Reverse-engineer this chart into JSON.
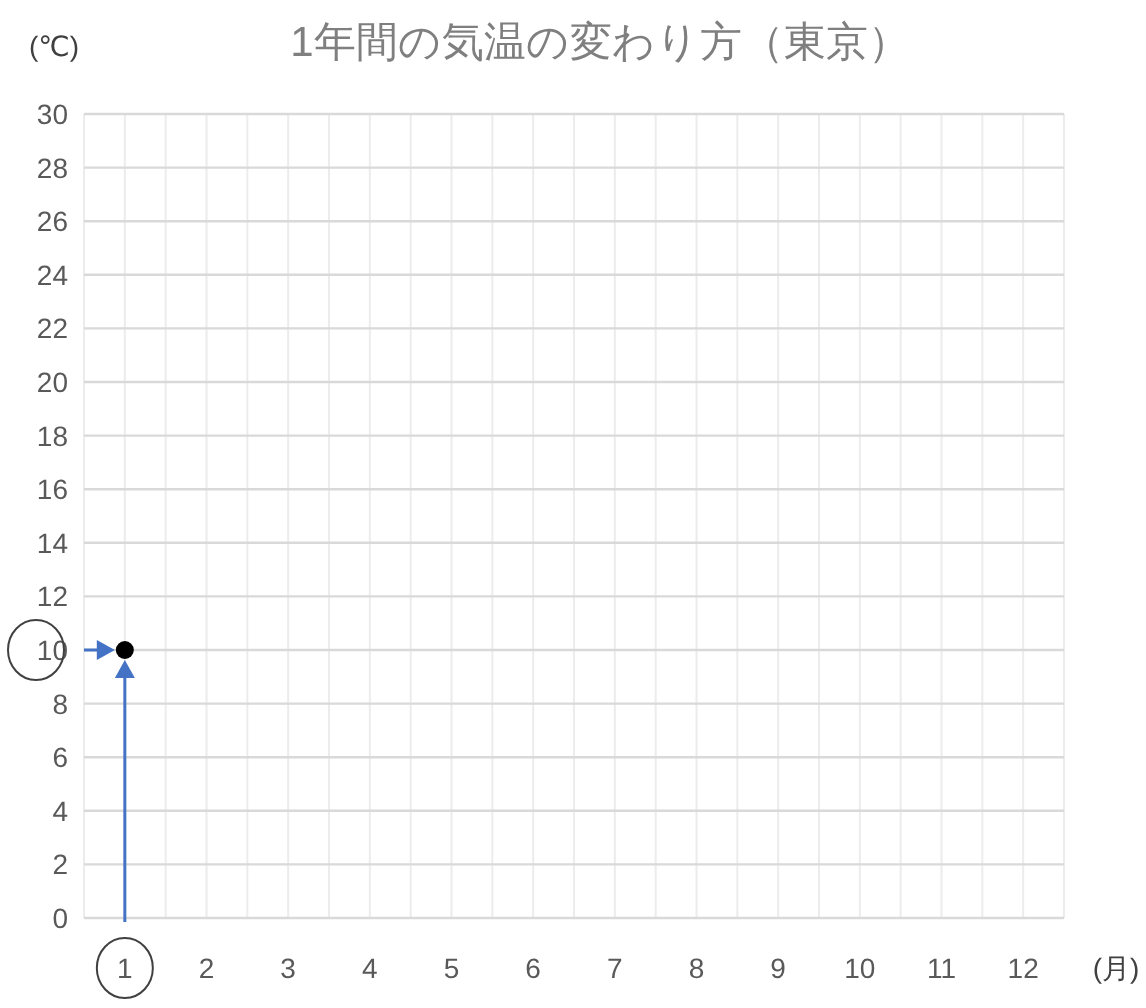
{
  "chart_data": {
    "type": "scatter",
    "title": "1年間の気温の変わり方（東京）",
    "ylabel": "(℃)",
    "xlabel": "(月)",
    "categories": [
      "1",
      "2",
      "3",
      "4",
      "5",
      "6",
      "7",
      "8",
      "9",
      "10",
      "11",
      "12"
    ],
    "series": [
      {
        "color": "#000000",
        "values": [
          10,
          null,
          null,
          null,
          null,
          null,
          null,
          null,
          null,
          null,
          null,
          null
        ]
      }
    ],
    "ylim": [
      0,
      30
    ],
    "yticks": [
      0,
      2,
      4,
      6,
      8,
      10,
      12,
      14,
      16,
      18,
      20,
      22,
      24,
      26,
      28,
      30
    ],
    "grid": true,
    "marker": "circle"
  }
}
